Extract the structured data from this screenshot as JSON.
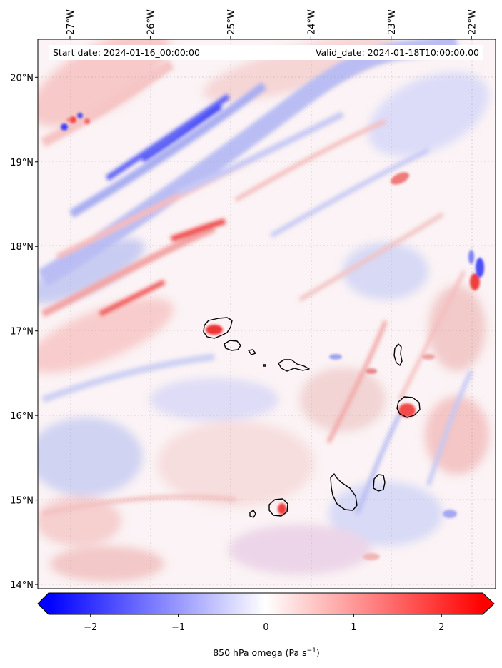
{
  "header": {
    "start_date": "Start date: 2024-01-16_00:00:00",
    "valid_date": "Valid_date: 2024-01-18T10:00:00.00"
  },
  "map": {
    "lon_range": [
      -27.4,
      -21.7
    ],
    "lat_range": [
      13.95,
      20.45
    ],
    "lon_ticks": [
      {
        "value": -27,
        "label": "27°W"
      },
      {
        "value": -26,
        "label": "26°W"
      },
      {
        "value": -25,
        "label": "25°W"
      },
      {
        "value": -24,
        "label": "24°W"
      },
      {
        "value": -23,
        "label": "23°W"
      },
      {
        "value": -22,
        "label": "22°W"
      }
    ],
    "lat_ticks": [
      {
        "value": 14,
        "label": "14°N"
      },
      {
        "value": 15,
        "label": "15°N"
      },
      {
        "value": 16,
        "label": "16°N"
      },
      {
        "value": 17,
        "label": "17°N"
      },
      {
        "value": 18,
        "label": "18°N"
      },
      {
        "value": 19,
        "label": "19°N"
      },
      {
        "value": 20,
        "label": "20°N"
      }
    ],
    "gridlines": true,
    "islands": [
      "Santo Antão",
      "São Vicente",
      "Santa Luzia",
      "São Nicolau",
      "Sal",
      "Boa Vista",
      "Maio",
      "Santiago",
      "Fogo",
      "Brava"
    ]
  },
  "colorbar": {
    "label": "850 hPa omega (Pa s",
    "label_sup": "−1",
    "label_end": ")",
    "range": [
      -2.6,
      2.6
    ],
    "ticks": [
      {
        "value": -2,
        "label": "−2"
      },
      {
        "value": -1,
        "label": "−1"
      },
      {
        "value": 0,
        "label": "0"
      },
      {
        "value": 1,
        "label": "1"
      },
      {
        "value": 2,
        "label": "2"
      }
    ],
    "colormap": "bwr",
    "extend": "both",
    "colors": {
      "low": "#0000ff",
      "mid": "#ffffff",
      "high": "#ff0000"
    }
  }
}
